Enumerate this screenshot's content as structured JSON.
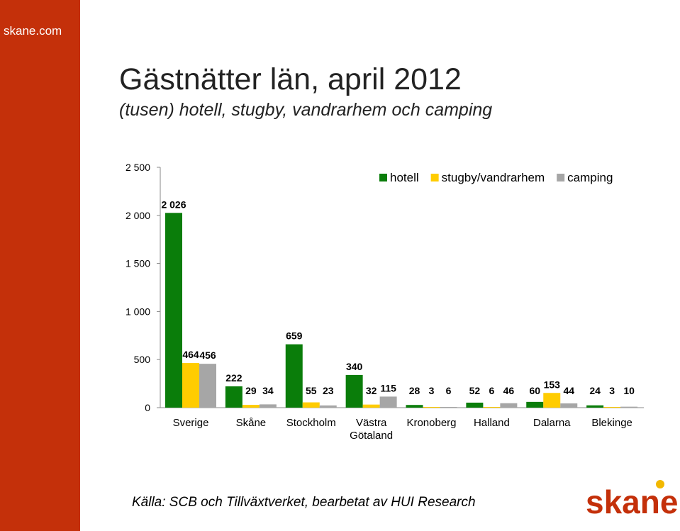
{
  "site_label": "skane.com",
  "title": "Gästnätter län, april 2012",
  "subtitle": "(tusen) hotell, stugby, vandrarhem och camping",
  "source": "Källa: SCB och Tillväxtverket, bearbetat av HUI Research",
  "logo_text": "skane",
  "colors": {
    "sidebar": "#c4300a",
    "logo": "#c4300a",
    "logo_dot": "#f2b800"
  },
  "chart_data": {
    "type": "bar",
    "categories": [
      [
        "Sverige"
      ],
      [
        "Skåne"
      ],
      [
        "Stockholm"
      ],
      [
        "Västra",
        "Götaland"
      ],
      [
        "Kronoberg"
      ],
      [
        "Halland"
      ],
      [
        "Dalarna"
      ],
      [
        "Blekinge"
      ]
    ],
    "series": [
      {
        "name": "hotell",
        "color": "#0a7d0a",
        "values": [
          2026,
          222,
          659,
          340,
          28,
          52,
          60,
          24
        ],
        "labels": [
          "2 026",
          "222",
          "659",
          "340",
          "28",
          "52",
          "60",
          "24"
        ]
      },
      {
        "name": "stugby/vandrarhem",
        "color": "#ffcc00",
        "values": [
          464,
          29,
          55,
          32,
          3,
          6,
          153,
          3
        ],
        "labels": [
          "464",
          "29",
          "55",
          "32",
          "3",
          "6",
          "153",
          "3"
        ]
      },
      {
        "name": "camping",
        "color": "#a6a6a6",
        "values": [
          456,
          34,
          23,
          115,
          6,
          46,
          44,
          10
        ],
        "labels": [
          "456",
          "34",
          "23",
          "115",
          "6",
          "46",
          "44",
          "10"
        ]
      }
    ],
    "ylim": [
      0,
      2500
    ],
    "yticks": [
      0,
      500,
      1000,
      1500,
      2000,
      2500
    ],
    "ytick_labels": [
      "0",
      "500",
      "1 000",
      "1 500",
      "2 000",
      "2 500"
    ],
    "legend_position": "top-right",
    "grid": false
  }
}
